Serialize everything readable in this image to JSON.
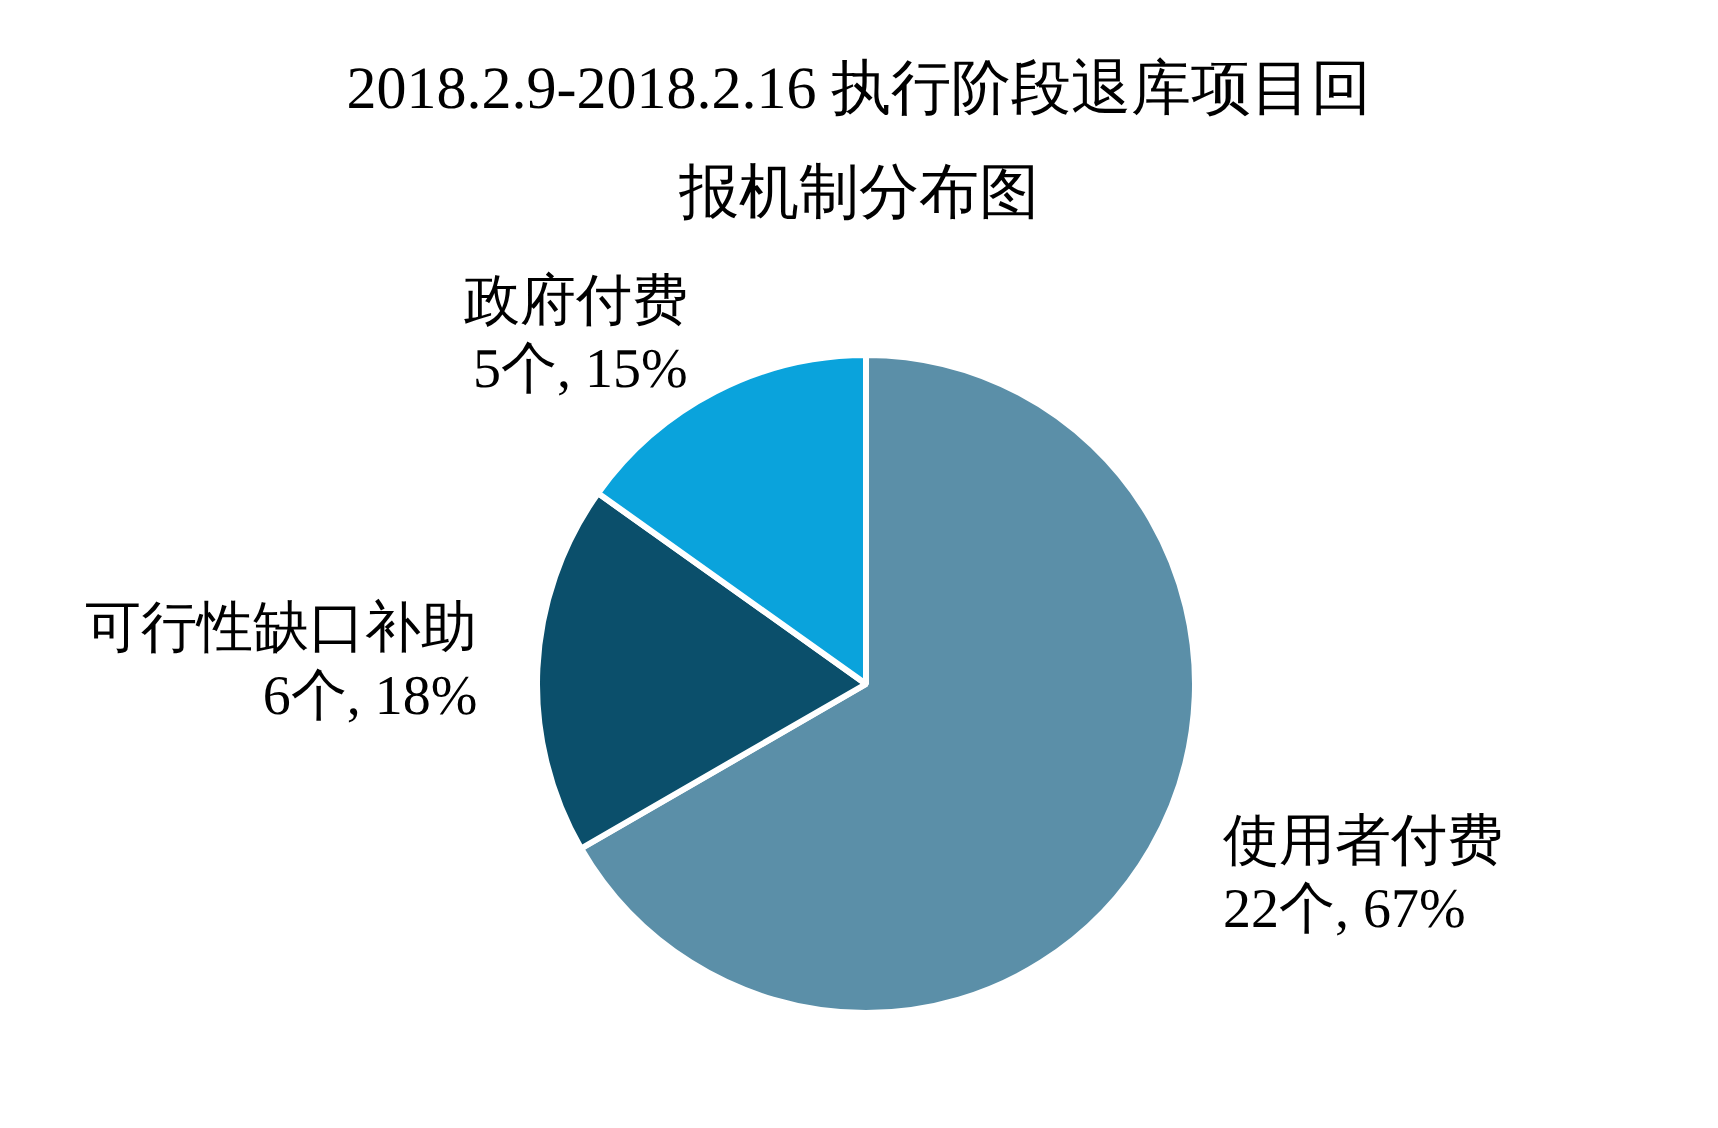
{
  "chart_data": {
    "type": "pie",
    "title": "2018.2.9-2018.2.16 执行阶段退库项目回报机制分布图",
    "categories": [
      "使用者付费",
      "可行性缺口补助",
      "政府付费"
    ],
    "values": [
      22,
      6,
      5
    ],
    "colors": [
      "#5b8fa8",
      "#0b4f6b",
      "#0aa3dc"
    ],
    "value_labels": [
      "22个, 67%",
      "6个, 18%",
      "5个, 15%"
    ],
    "legend": false
  }
}
